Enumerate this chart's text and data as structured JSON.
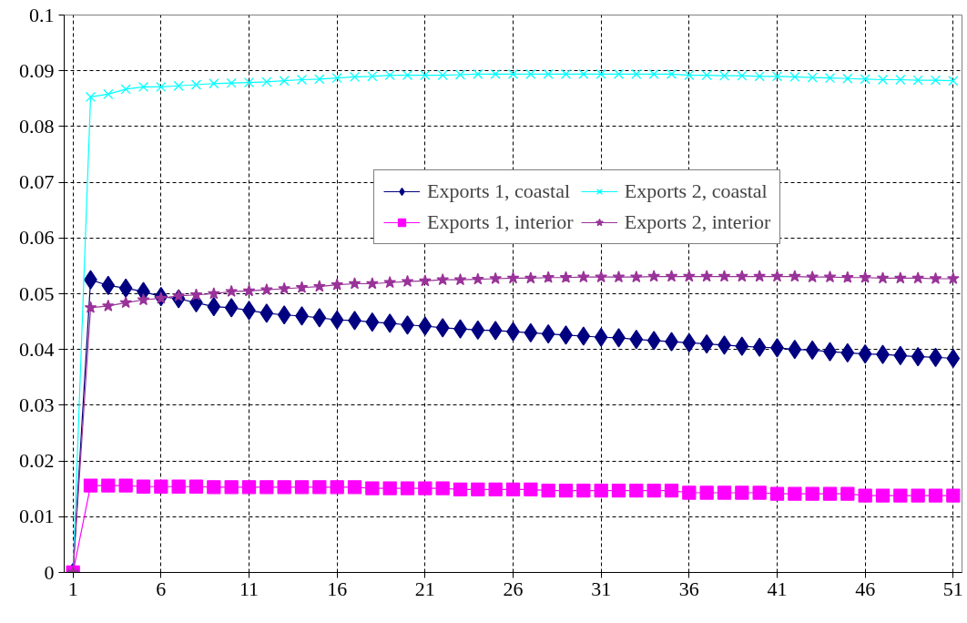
{
  "chart_data": {
    "type": "line",
    "x": [
      1,
      2,
      3,
      4,
      5,
      6,
      7,
      8,
      9,
      10,
      11,
      12,
      13,
      14,
      15,
      16,
      17,
      18,
      19,
      20,
      21,
      22,
      23,
      24,
      25,
      26,
      27,
      28,
      29,
      30,
      31,
      32,
      33,
      34,
      35,
      36,
      37,
      38,
      39,
      40,
      41,
      42,
      43,
      44,
      45,
      46,
      47,
      48,
      49,
      50,
      51
    ],
    "xlim": [
      0.5,
      51.5
    ],
    "xticks": [
      1,
      6,
      11,
      16,
      21,
      26,
      31,
      36,
      41,
      46,
      51
    ],
    "ylim": [
      0,
      0.1
    ],
    "yticks": [
      0,
      0.01,
      0.02,
      0.03,
      0.04,
      0.05,
      0.06,
      0.07,
      0.08,
      0.09,
      0.1
    ],
    "grid": true,
    "legend": "top right",
    "line_style": "solid",
    "series": [
      {
        "name": "Exports 1, coastal",
        "color": "#000080",
        "marker": "diamond",
        "values": [
          0,
          0.0525,
          0.0515,
          0.051,
          0.0504,
          0.0495,
          0.0491,
          0.0484,
          0.0477,
          0.0475,
          0.047,
          0.0465,
          0.0462,
          0.046,
          0.0457,
          0.0453,
          0.0452,
          0.0449,
          0.0447,
          0.0444,
          0.0442,
          0.0439,
          0.0437,
          0.0435,
          0.0434,
          0.0432,
          0.043,
          0.0428,
          0.0426,
          0.0424,
          0.0422,
          0.0421,
          0.0418,
          0.0416,
          0.0414,
          0.0412,
          0.041,
          0.0408,
          0.0406,
          0.0404,
          0.0403,
          0.04,
          0.0399,
          0.0396,
          0.0394,
          0.0392,
          0.0391,
          0.0389,
          0.0387,
          0.0386,
          0.0384
        ]
      },
      {
        "name": "Exports 2, coastal",
        "color": "#00ffff",
        "marker": "cross",
        "values": [
          0,
          0.0853,
          0.0858,
          0.0867,
          0.0871,
          0.0871,
          0.0873,
          0.0875,
          0.0877,
          0.0878,
          0.0879,
          0.088,
          0.0882,
          0.0884,
          0.0885,
          0.0887,
          0.0889,
          0.089,
          0.0892,
          0.0892,
          0.0892,
          0.0892,
          0.0893,
          0.0894,
          0.0894,
          0.0894,
          0.0894,
          0.0894,
          0.0894,
          0.0894,
          0.0894,
          0.0894,
          0.0894,
          0.0894,
          0.0894,
          0.0892,
          0.0892,
          0.0891,
          0.0891,
          0.089,
          0.089,
          0.0889,
          0.0888,
          0.0887,
          0.0886,
          0.0885,
          0.0884,
          0.0884,
          0.0883,
          0.0883,
          0.0882
        ]
      },
      {
        "name": "Exports 1, interior",
        "color": "#ff00ff",
        "marker": "square",
        "values": [
          0,
          0.0156,
          0.0156,
          0.0156,
          0.0154,
          0.0154,
          0.0154,
          0.0154,
          0.0153,
          0.0153,
          0.0153,
          0.0153,
          0.0153,
          0.0153,
          0.0153,
          0.0153,
          0.0153,
          0.0151,
          0.0151,
          0.0151,
          0.0151,
          0.0151,
          0.0149,
          0.0149,
          0.0149,
          0.0149,
          0.0149,
          0.0147,
          0.0147,
          0.0147,
          0.0147,
          0.0147,
          0.0147,
          0.0147,
          0.0147,
          0.0143,
          0.0143,
          0.0143,
          0.0143,
          0.0143,
          0.0141,
          0.0141,
          0.0141,
          0.0141,
          0.0141,
          0.0138,
          0.0138,
          0.0138,
          0.0138,
          0.0138,
          0.0138
        ]
      },
      {
        "name": "Exports 2, interior",
        "color": "#993399",
        "marker": "star",
        "values": [
          0,
          0.0475,
          0.0478,
          0.0484,
          0.0489,
          0.0492,
          0.0496,
          0.0498,
          0.05,
          0.0504,
          0.0505,
          0.0507,
          0.0509,
          0.0511,
          0.0513,
          0.0516,
          0.0518,
          0.0518,
          0.052,
          0.0522,
          0.0523,
          0.0525,
          0.0525,
          0.0526,
          0.0527,
          0.0528,
          0.0528,
          0.0529,
          0.0529,
          0.053,
          0.053,
          0.053,
          0.053,
          0.0531,
          0.0531,
          0.0531,
          0.0531,
          0.0531,
          0.0531,
          0.0531,
          0.0531,
          0.0531,
          0.053,
          0.053,
          0.0529,
          0.0529,
          0.0528,
          0.0528,
          0.0528,
          0.0527,
          0.0527
        ]
      }
    ]
  }
}
